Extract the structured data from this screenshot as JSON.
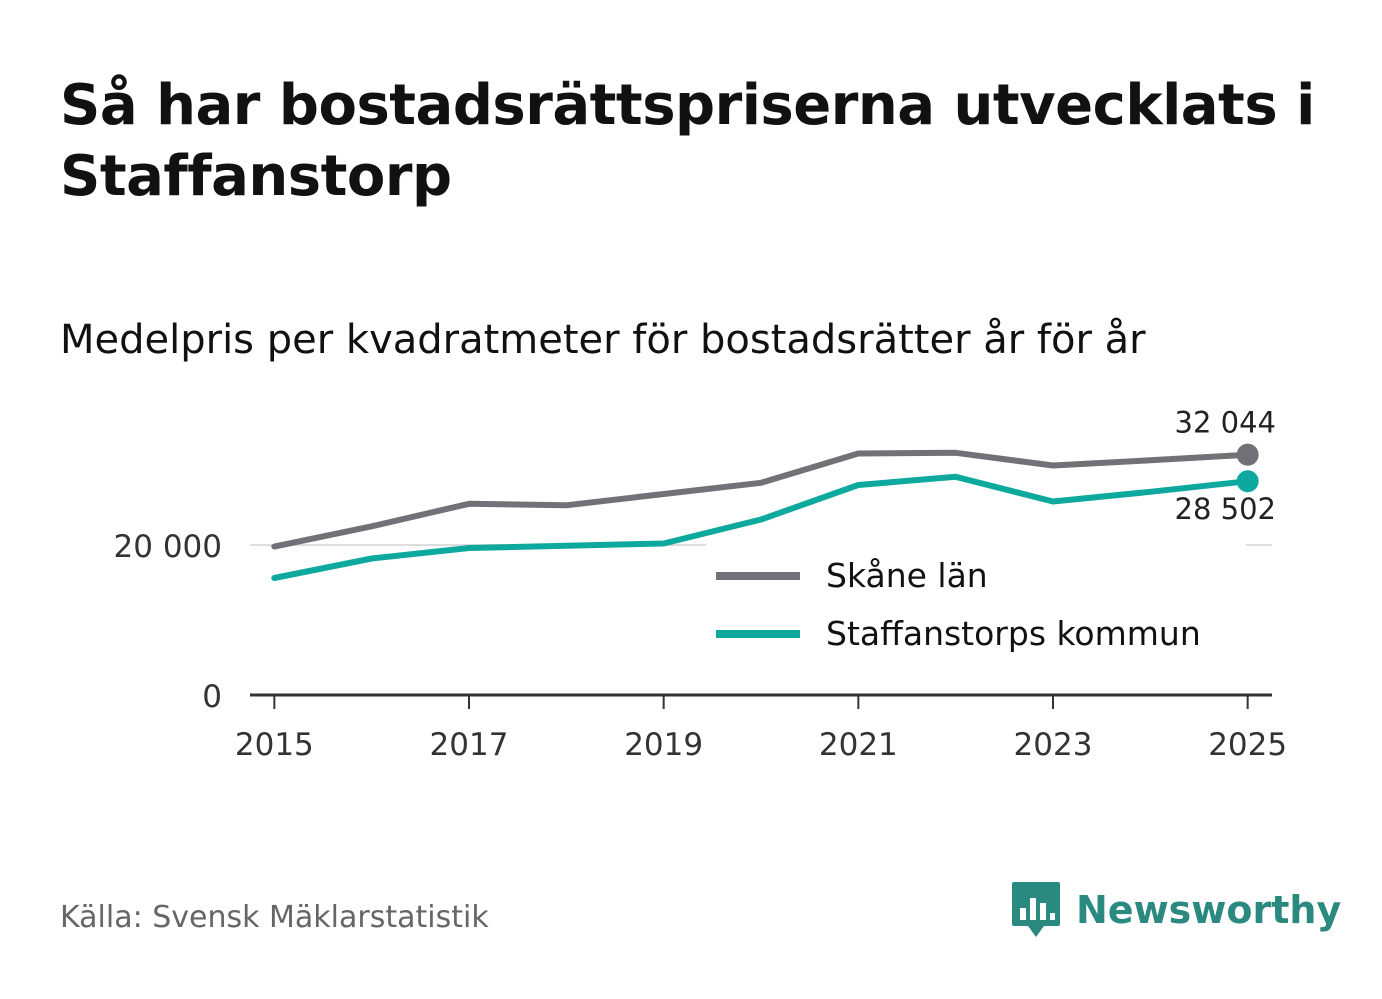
{
  "title": "Så har bostadsrättspriserna utvecklats i Staffanstorp",
  "subtitle": "Medelpris per kvadratmeter för bostadsrätter år för år",
  "source": "Källa: Svensk Mäklarstatistik",
  "brand": {
    "name": "Newsworthy",
    "color": "#2b8a80",
    "icon": "bar-chart-speech-bubble-icon"
  },
  "chart_data": {
    "type": "line",
    "title": "Medelpris per kvadratmeter för bostadsrätter år för år",
    "xlabel": "",
    "ylabel": "",
    "x": [
      2015,
      2016,
      2017,
      2018,
      2019,
      2020,
      2021,
      2022,
      2023,
      2024,
      2025
    ],
    "xlim": [
      2014.75,
      2025.25
    ],
    "ylim": [
      0,
      40000
    ],
    "yticks": [
      0,
      20000
    ],
    "ytick_labels": [
      "0",
      "20 000"
    ],
    "xticks": [
      2015,
      2017,
      2019,
      2021,
      2023,
      2025
    ],
    "xtick_labels": [
      "2015",
      "2017",
      "2019",
      "2021",
      "2023",
      "2025"
    ],
    "grid": "horizontal",
    "legend_position": "bottom-right",
    "series": [
      {
        "name": "Skåne län",
        "color": "#717178",
        "values": [
          19800,
          22500,
          25500,
          25300,
          26800,
          28300,
          32200,
          32300,
          30600,
          31300,
          32044
        ],
        "end_label": "32 044"
      },
      {
        "name": "Staffanstorps kommun",
        "color": "#0ea99e",
        "values": [
          15600,
          18200,
          19600,
          19900,
          20200,
          23400,
          28000,
          29100,
          25800,
          27100,
          28502
        ],
        "end_label": "28 502"
      }
    ]
  }
}
